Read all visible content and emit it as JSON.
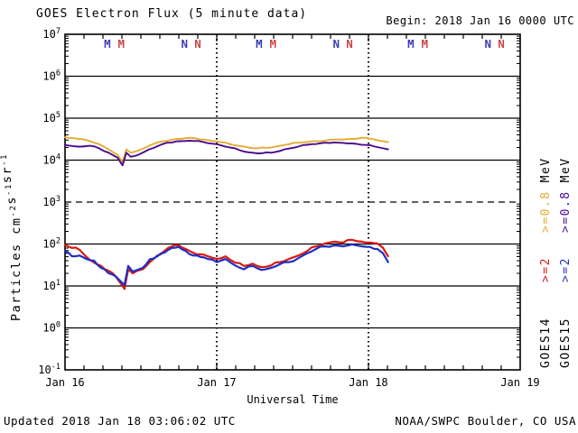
{
  "header": {
    "title": "GOES Electron Flux (5 minute data)",
    "begin": "Begin: 2018 Jan 16 0000 UTC"
  },
  "footer": {
    "updated": "Updated 2018 Jan 18 03:06:02 UTC",
    "source": "NOAA/SWPC Boulder, CO USA"
  },
  "chart_data": {
    "type": "line",
    "title": "GOES Electron Flux (5 minute data)",
    "xlabel": "Universal Time",
    "ylabel": "Particles cm-2s-1sr-1",
    "ylabel_parts": [
      {
        "text": "Particles cm"
      },
      {
        "text": "-2",
        "sup": true
      },
      {
        "text": "s"
      },
      {
        "text": "-1",
        "sup": true
      },
      {
        "text": "sr"
      },
      {
        "text": "-1",
        "sup": true
      }
    ],
    "x_unit": "hours since 2018 Jan 16 0000 UTC",
    "x_range_hours": [
      0,
      72
    ],
    "x_major_ticks": [
      {
        "t": 0,
        "label": "Jan 16"
      },
      {
        "t": 24,
        "label": "Jan 17"
      },
      {
        "t": 48,
        "label": "Jan 18"
      },
      {
        "t": 72,
        "label": "Jan 19"
      }
    ],
    "x_minor_step_hours": 3,
    "day_boundary_dotted_lines_t": [
      24,
      48
    ],
    "y_scale": "log",
    "ylim_exponents": [
      -1,
      7
    ],
    "y_tick_exponents": [
      7,
      6,
      5,
      4,
      3,
      2,
      1,
      0,
      -1
    ],
    "y_dashed_threshold_value": 1000,
    "grid": "solid horizontal line at each decade, dashed at 1e3",
    "series": [
      {
        "name": "GOES14 >=0.8 MeV",
        "color": "#E4AC30",
        "points": [
          [
            0,
            35000
          ],
          [
            2,
            32000
          ],
          [
            4,
            28000
          ],
          [
            5.4,
            24000
          ],
          [
            6.9,
            18000
          ],
          [
            8.3,
            13500
          ],
          [
            9.1,
            8800
          ],
          [
            9.7,
            18000
          ],
          [
            10.4,
            15000
          ],
          [
            11.4,
            16500
          ],
          [
            13.3,
            22000
          ],
          [
            15.4,
            28000
          ],
          [
            17.6,
            32000
          ],
          [
            19.7,
            34000
          ],
          [
            21.9,
            31000
          ],
          [
            24,
            28000
          ],
          [
            26.1,
            24000
          ],
          [
            28.3,
            21000
          ],
          [
            30.4,
            19000
          ],
          [
            32.6,
            20000
          ],
          [
            34.7,
            23000
          ],
          [
            36.9,
            26000
          ],
          [
            39,
            28000
          ],
          [
            41.1,
            29000
          ],
          [
            43.3,
            31000
          ],
          [
            45.4,
            32000
          ],
          [
            47.6,
            34000
          ],
          [
            49,
            31000
          ],
          [
            50.4,
            28000
          ],
          [
            51.1,
            27000
          ]
        ]
      },
      {
        "name": "GOES15 >=0.8 MeV",
        "color": "#4B0B8E",
        "points": [
          [
            0,
            23000
          ],
          [
            2,
            21000
          ],
          [
            4,
            22000
          ],
          [
            5.4,
            19000
          ],
          [
            6.9,
            15000
          ],
          [
            8.3,
            11500
          ],
          [
            9.1,
            7500
          ],
          [
            9.7,
            15000
          ],
          [
            10.4,
            12000
          ],
          [
            11.4,
            13000
          ],
          [
            13.3,
            18000
          ],
          [
            15.4,
            24000
          ],
          [
            17.6,
            28000
          ],
          [
            19.7,
            29000
          ],
          [
            21.9,
            27000
          ],
          [
            24,
            24000
          ],
          [
            26.1,
            20000
          ],
          [
            28.3,
            16000
          ],
          [
            30.4,
            14500
          ],
          [
            32.6,
            15000
          ],
          [
            34.7,
            18000
          ],
          [
            36.9,
            21000
          ],
          [
            39,
            24000
          ],
          [
            41.1,
            26000
          ],
          [
            43.3,
            26000
          ],
          [
            45.4,
            25000
          ],
          [
            47.6,
            23000
          ],
          [
            49,
            21000
          ],
          [
            50.4,
            19000
          ],
          [
            51.1,
            18000
          ]
        ]
      },
      {
        "name": "GOES14 >=2 MeV",
        "color": "#D91A12",
        "points": [
          [
            0,
            95
          ],
          [
            1.1,
            81
          ],
          [
            2.3,
            73
          ],
          [
            3.4,
            49
          ],
          [
            4.6,
            36
          ],
          [
            5.7,
            30
          ],
          [
            6.9,
            23
          ],
          [
            8,
            17
          ],
          [
            9,
            10.5
          ],
          [
            9.4,
            8.5
          ],
          [
            10,
            25
          ],
          [
            10.7,
            20
          ],
          [
            11.4,
            23
          ],
          [
            12.3,
            25
          ],
          [
            13.4,
            37
          ],
          [
            14.6,
            53
          ],
          [
            15.7,
            68
          ],
          [
            16.9,
            88
          ],
          [
            18,
            93
          ],
          [
            19.1,
            76
          ],
          [
            20.3,
            62
          ],
          [
            21.4,
            57
          ],
          [
            22.6,
            51
          ],
          [
            24,
            44
          ],
          [
            25.4,
            51
          ],
          [
            26.9,
            36
          ],
          [
            28.3,
            30
          ],
          [
            29.7,
            34
          ],
          [
            31.1,
            28
          ],
          [
            32.6,
            31
          ],
          [
            34,
            37
          ],
          [
            35.4,
            44
          ],
          [
            36.9,
            53
          ],
          [
            38.3,
            68
          ],
          [
            39.7,
            88
          ],
          [
            41.1,
            103
          ],
          [
            42.6,
            114
          ],
          [
            44,
            108
          ],
          [
            45.4,
            126
          ],
          [
            47,
            114
          ],
          [
            48.3,
            108
          ],
          [
            49.4,
            103
          ],
          [
            50.3,
            81
          ],
          [
            51.1,
            51
          ]
        ]
      },
      {
        "name": "GOES15 >=2 MeV",
        "color": "#1E2FC4",
        "points": [
          [
            0,
            68
          ],
          [
            1.1,
            51
          ],
          [
            2.3,
            53
          ],
          [
            3.4,
            44
          ],
          [
            4.6,
            40
          ],
          [
            5.7,
            27
          ],
          [
            6.9,
            20
          ],
          [
            8,
            17
          ],
          [
            9,
            12
          ],
          [
            9.4,
            10.5
          ],
          [
            10,
            30
          ],
          [
            10.7,
            22
          ],
          [
            11.4,
            24
          ],
          [
            12.3,
            27
          ],
          [
            13.4,
            43
          ],
          [
            14.6,
            51
          ],
          [
            15.7,
            62
          ],
          [
            16.9,
            81
          ],
          [
            18,
            85
          ],
          [
            19.1,
            68
          ],
          [
            20.3,
            53
          ],
          [
            21.4,
            49
          ],
          [
            22.6,
            44
          ],
          [
            24,
            37
          ],
          [
            25.4,
            44
          ],
          [
            26.9,
            31
          ],
          [
            28.3,
            25
          ],
          [
            29.7,
            30
          ],
          [
            31.1,
            24
          ],
          [
            32.6,
            27
          ],
          [
            34,
            33
          ],
          [
            35.4,
            37
          ],
          [
            36.9,
            46
          ],
          [
            38.3,
            60
          ],
          [
            39.7,
            76
          ],
          [
            41.1,
            88
          ],
          [
            42.6,
            93
          ],
          [
            44,
            88
          ],
          [
            45.4,
            98
          ],
          [
            47,
            88
          ],
          [
            48.3,
            85
          ],
          [
            49.4,
            76
          ],
          [
            50.3,
            60
          ],
          [
            51.1,
            37
          ]
        ]
      }
    ],
    "top_markers": [
      {
        "t": 6.7,
        "letter": "M",
        "color": "#3A3AB8"
      },
      {
        "t": 8.9,
        "letter": "M",
        "color": "#CC4444"
      },
      {
        "t": 18.9,
        "letter": "N",
        "color": "#3A3AB8"
      },
      {
        "t": 21.0,
        "letter": "N",
        "color": "#CC4444"
      },
      {
        "t": 30.7,
        "letter": "M",
        "color": "#3A3AB8"
      },
      {
        "t": 32.9,
        "letter": "M",
        "color": "#CC4444"
      },
      {
        "t": 42.9,
        "letter": "N",
        "color": "#3A3AB8"
      },
      {
        "t": 45.0,
        "letter": "N",
        "color": "#CC4444"
      },
      {
        "t": 54.7,
        "letter": "M",
        "color": "#3A3AB8"
      },
      {
        "t": 56.9,
        "letter": "M",
        "color": "#CC4444"
      },
      {
        "t": 66.9,
        "letter": "N",
        "color": "#3A3AB8"
      },
      {
        "t": 69.0,
        "letter": "N",
        "color": "#CC4444"
      }
    ],
    "legend_right": {
      "unit": "MeV",
      "columns": [
        {
          "satellite": "GOES14",
          "low": {
            "label": ">=0.8",
            "color": "#E4AC30"
          },
          "high": {
            "label": ">=2",
            "color": "#D91A12"
          }
        },
        {
          "satellite": "GOES15",
          "low": {
            "label": ">=0.8",
            "color": "#4B0B8E"
          },
          "high": {
            "label": ">=2",
            "color": "#1E2FC4"
          }
        }
      ]
    }
  }
}
